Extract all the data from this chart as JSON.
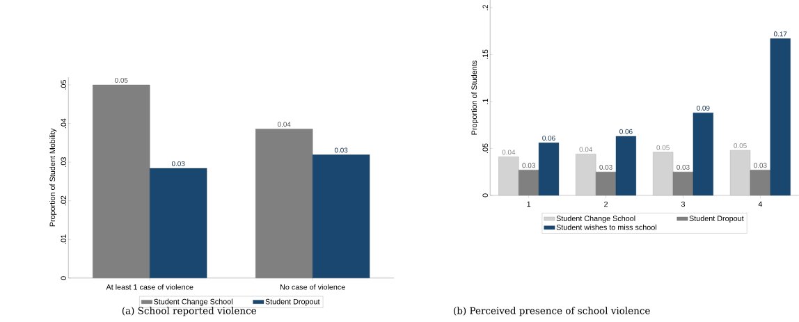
{
  "chart_data": [
    {
      "type": "bar",
      "ylabel": "Proportion of Student Mobility",
      "categories": [
        "At least 1 case of violence",
        "No case of violence"
      ],
      "ylim": [
        0,
        0.052
      ],
      "yticks": [
        0,
        {
          "value": 0.01,
          "label": ".01"
        },
        {
          "value": 0.02,
          "label": ".02"
        },
        {
          "value": 0.03,
          "label": ".03"
        },
        {
          "value": 0.04,
          "label": ".04"
        },
        {
          "value": 0.05,
          "label": ".05"
        }
      ],
      "legend": "bottom",
      "annotations": [
        "(a) School reported violence"
      ],
      "series": [
        {
          "name": "Student Change School",
          "color": "#808080",
          "values": [
            0.05,
            0.0386
          ],
          "value_labels": [
            "0.05",
            "0.04"
          ]
        },
        {
          "name": "Student Dropout",
          "color": "#1a476f",
          "values": [
            0.0284,
            0.0319
          ],
          "value_labels": [
            "0.03",
            "0.03"
          ]
        }
      ]
    },
    {
      "type": "bar",
      "ylabel": "Proportion of Students",
      "categories": [
        "1",
        "2",
        "3",
        "4"
      ],
      "ylim": [
        0,
        0.208
      ],
      "yticks": [
        0,
        {
          "value": 0.05,
          "label": ".05"
        },
        {
          "value": 0.1,
          "label": ".1"
        },
        {
          "value": 0.15,
          "label": ".15"
        },
        {
          "value": 0.2,
          "label": ".2"
        }
      ],
      "legend": "bottom",
      "annotations": [
        "(b) Perceived presence of school violence"
      ],
      "series": [
        {
          "name": "Student Change School",
          "color": "#d3d3d3",
          "values": [
            0.041,
            0.044,
            0.046,
            0.048
          ],
          "value_labels": [
            "0.04",
            "0.04",
            "0.05",
            "0.05"
          ]
        },
        {
          "name": "Student Dropout",
          "color": "#808080",
          "values": [
            0.027,
            0.025,
            0.025,
            0.027
          ],
          "value_labels": [
            "0.03",
            "0.03",
            "0.03",
            "0.03"
          ]
        },
        {
          "name": "Student wishes to miss school",
          "color": "#1a476f",
          "values": [
            0.056,
            0.063,
            0.088,
            0.167
          ],
          "value_labels": [
            "0.06",
            "0.06",
            "0.09",
            "0.17"
          ]
        }
      ]
    }
  ]
}
